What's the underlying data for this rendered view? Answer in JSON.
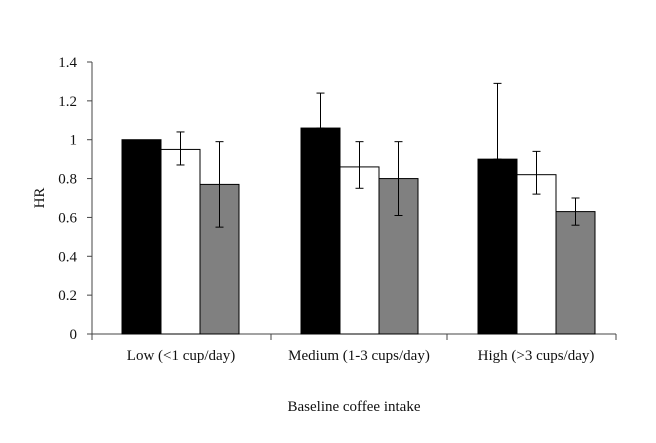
{
  "chart_data": {
    "type": "bar",
    "title": "",
    "xlabel": "Baseline coffee intake",
    "ylabel": "HR",
    "categories": [
      "Low (<1 cup/day)",
      "Medium (1-3 cups/day)",
      "High (>3 cups/day)"
    ],
    "series": [
      {
        "fill": "#000000",
        "values": [
          1.0,
          1.06,
          0.9
        ],
        "error_upper": [
          null,
          1.24,
          1.29
        ],
        "error_lower": [
          null,
          1.06,
          0.9
        ]
      },
      {
        "fill": "#ffffff",
        "values": [
          0.95,
          0.86,
          0.82
        ],
        "error_upper": [
          1.04,
          0.99,
          0.94
        ],
        "error_lower": [
          0.87,
          0.75,
          0.72
        ]
      },
      {
        "fill": "#808080",
        "values": [
          0.77,
          0.8,
          0.63
        ],
        "error_upper": [
          0.99,
          0.99,
          0.7
        ],
        "error_lower": [
          0.55,
          0.61,
          0.56
        ]
      }
    ],
    "ylim": [
      0,
      1.4
    ],
    "yticks": [
      "0",
      "0.2",
      "0.4",
      "0.6",
      "0.8",
      "1",
      "1.2",
      "1.4"
    ],
    "grid": false,
    "legend": false
  }
}
